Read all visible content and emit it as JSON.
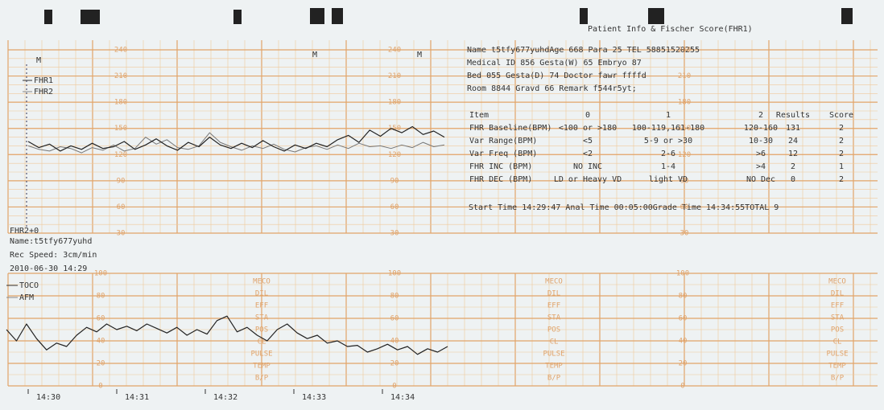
{
  "header": {
    "title": "Patient Info & Fischer Score(FHR1)"
  },
  "markers": [
    "M",
    "M",
    "M"
  ],
  "legend_top": [
    "FHR1",
    "FHR2"
  ],
  "offset_label": "FHR2+0",
  "record": [
    "Name:t5tfy677yuhd",
    "Rec Speed: 3cm/min",
    "2010-06-30 14:29"
  ],
  "legend_bottom": [
    "TOCO",
    "AFM"
  ],
  "times": [
    "14:30",
    "14:31",
    "14:32",
    "14:33",
    "14:34"
  ],
  "fhr_axis": [
    240,
    210,
    180,
    150,
    120,
    90,
    60,
    30
  ],
  "toco_axis": [
    100,
    80,
    60,
    40,
    20,
    0
  ],
  "status_labels": [
    "MECO",
    "DIL",
    "EFF",
    "STA",
    "POS",
    "CL",
    "PULSE",
    "TEMP",
    "B/P"
  ],
  "info": [
    "Name t5tfy677yuhdAge 668  Para 25   TEL 58851520255",
    "Medical ID 856 Gesta(W) 65 Embryo 87",
    "Bed 055        Gesta(D) 74 Doctor fawr ffffd",
    "Room 8844      Gravd 66   Remark f544r5yt;"
  ],
  "score_table": {
    "header": [
      "Item",
      "0",
      "1",
      "2",
      "Results",
      "Score"
    ],
    "rows": [
      [
        "FHR Baseline(BPM)",
        "<100 or >180",
        "100-119,161-180",
        "120-160",
        "131",
        "2"
      ],
      [
        "Var  Range(BPM)",
        "<5",
        "5-9 or >30",
        "10-30",
        "24",
        "2"
      ],
      [
        "Var  Freq (BPM)",
        "<2",
        "2-6",
        ">6",
        "12",
        "2"
      ],
      [
        "FHR INC (BPM)",
        "NO INC",
        "1-4",
        ">4",
        "2",
        "1"
      ],
      [
        "FHR DEC (BPM)",
        "LD or Heavy VD",
        "light VD",
        "NO Dec",
        "0",
        "2"
      ]
    ],
    "footer": "Start Time 14:29:47 Anal Time 00:05:00Grade Time 14:34:55TOTAL 9"
  },
  "traces": {
    "fhr1": [
      135,
      128,
      132,
      124,
      130,
      126,
      133,
      127,
      129,
      135,
      126,
      131,
      138,
      130,
      125,
      134,
      129,
      140,
      131,
      127,
      133,
      128,
      136,
      129,
      124,
      131,
      127,
      133,
      129,
      137,
      142,
      134,
      148,
      141,
      150,
      145,
      152,
      143,
      147,
      140
    ],
    "fhr2": [
      130,
      126,
      124,
      129,
      127,
      122,
      128,
      125,
      131,
      124,
      127,
      140,
      132,
      137,
      128,
      126,
      130,
      145,
      134,
      129,
      125,
      130,
      127,
      132,
      126,
      123,
      128,
      130,
      126,
      131,
      127,
      133,
      129,
      130,
      127,
      131,
      128,
      134,
      129,
      131
    ],
    "toco": [
      50,
      40,
      55,
      42,
      32,
      38,
      35,
      45,
      52,
      48,
      55,
      50,
      53,
      49,
      55,
      51,
      47,
      52,
      45,
      50,
      46,
      58,
      62,
      48,
      52,
      45,
      40,
      50,
      55,
      47,
      42,
      45,
      38,
      40,
      35,
      36,
      30,
      33,
      37,
      32,
      35,
      28,
      33,
      30,
      35
    ]
  }
}
